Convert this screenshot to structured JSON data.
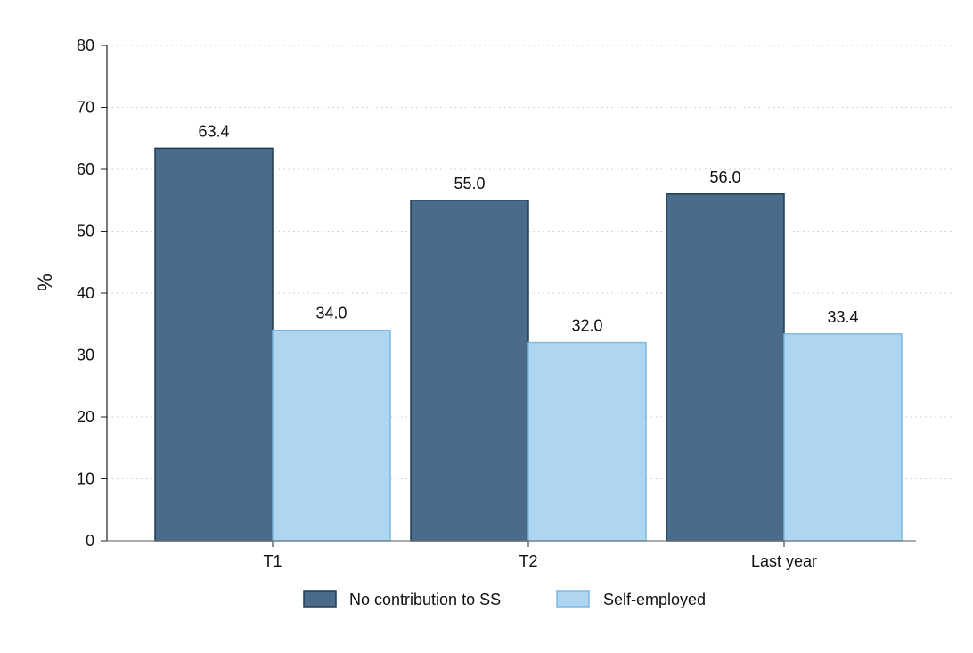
{
  "chart_data": {
    "type": "bar",
    "title": "",
    "xlabel": "",
    "ylabel": "%",
    "ylim": [
      0,
      80
    ],
    "yticks": [
      0,
      10,
      20,
      30,
      40,
      50,
      60,
      70,
      80
    ],
    "categories": [
      "T1",
      "T2",
      "Last year"
    ],
    "series": [
      {
        "name": "No contribution to SS",
        "values": [
          63.4,
          55.0,
          56.0
        ],
        "labels": [
          "63.4",
          "55.0",
          "56.0"
        ],
        "color": "#4a6b8a",
        "stroke": "#1f3c57"
      },
      {
        "name": "Self-employed",
        "values": [
          34.0,
          32.0,
          33.4
        ],
        "labels": [
          "34.0",
          "32.0",
          "33.4"
        ],
        "color": "#afd6f1",
        "stroke": "#7fb8e0"
      }
    ],
    "grid": "horizontal-dotted",
    "legend": "bottom-center"
  }
}
